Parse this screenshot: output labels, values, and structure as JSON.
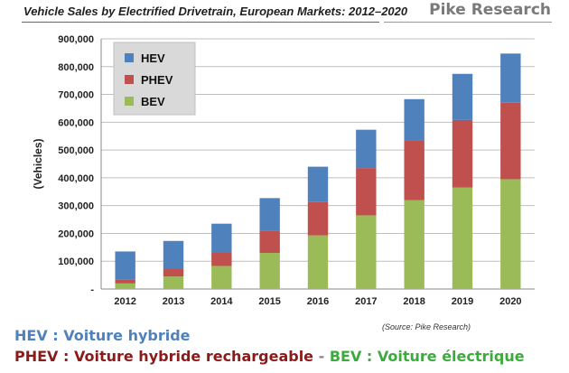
{
  "header": {
    "title": "Vehicle Sales by Electrified Drivetrain, European Markets: 2012–2020",
    "brand": "Pike Research"
  },
  "footer": {
    "source": "(Source: Pike Research)",
    "hev_text": "HEV : Voiture hybride",
    "phev_text": "PHEV : Voiture hybride rechargeable",
    "separator": " - ",
    "bev_text": "BEV : Voiture électrique",
    "colors": {
      "hev": "#4f81bd",
      "phev": "#8b1a1a",
      "bev": "#3daa3d",
      "separator": "#888888"
    }
  },
  "chart_data": {
    "type": "bar",
    "stacked": true,
    "title": "Vehicle Sales by Electrified Drivetrain, European Markets: 2012–2020",
    "xlabel": "",
    "ylabel": "(Vehicles)",
    "categories": [
      "2012",
      "2013",
      "2014",
      "2015",
      "2016",
      "2017",
      "2018",
      "2019",
      "2020"
    ],
    "ylim": [
      0,
      900000
    ],
    "yticks": [
      "-",
      "100,000",
      "200,000",
      "300,000",
      "400,000",
      "500,000",
      "600,000",
      "700,000",
      "800,000",
      "900,000"
    ],
    "grid": true,
    "legend_position": "top-left",
    "series": [
      {
        "name": "BEV",
        "color": "#9bbb59",
        "values": [
          20000,
          45000,
          83000,
          130000,
          193000,
          265000,
          320000,
          365000,
          395000
        ]
      },
      {
        "name": "PHEV",
        "color": "#c0504d",
        "values": [
          15000,
          28000,
          50000,
          80000,
          120000,
          170000,
          213000,
          243000,
          275000
        ]
      },
      {
        "name": "HEV",
        "color": "#4f81bd",
        "values": [
          100000,
          100000,
          102000,
          117000,
          127000,
          138000,
          150000,
          166000,
          177000
        ]
      }
    ],
    "legend_order": [
      "HEV",
      "PHEV",
      "BEV"
    ]
  }
}
